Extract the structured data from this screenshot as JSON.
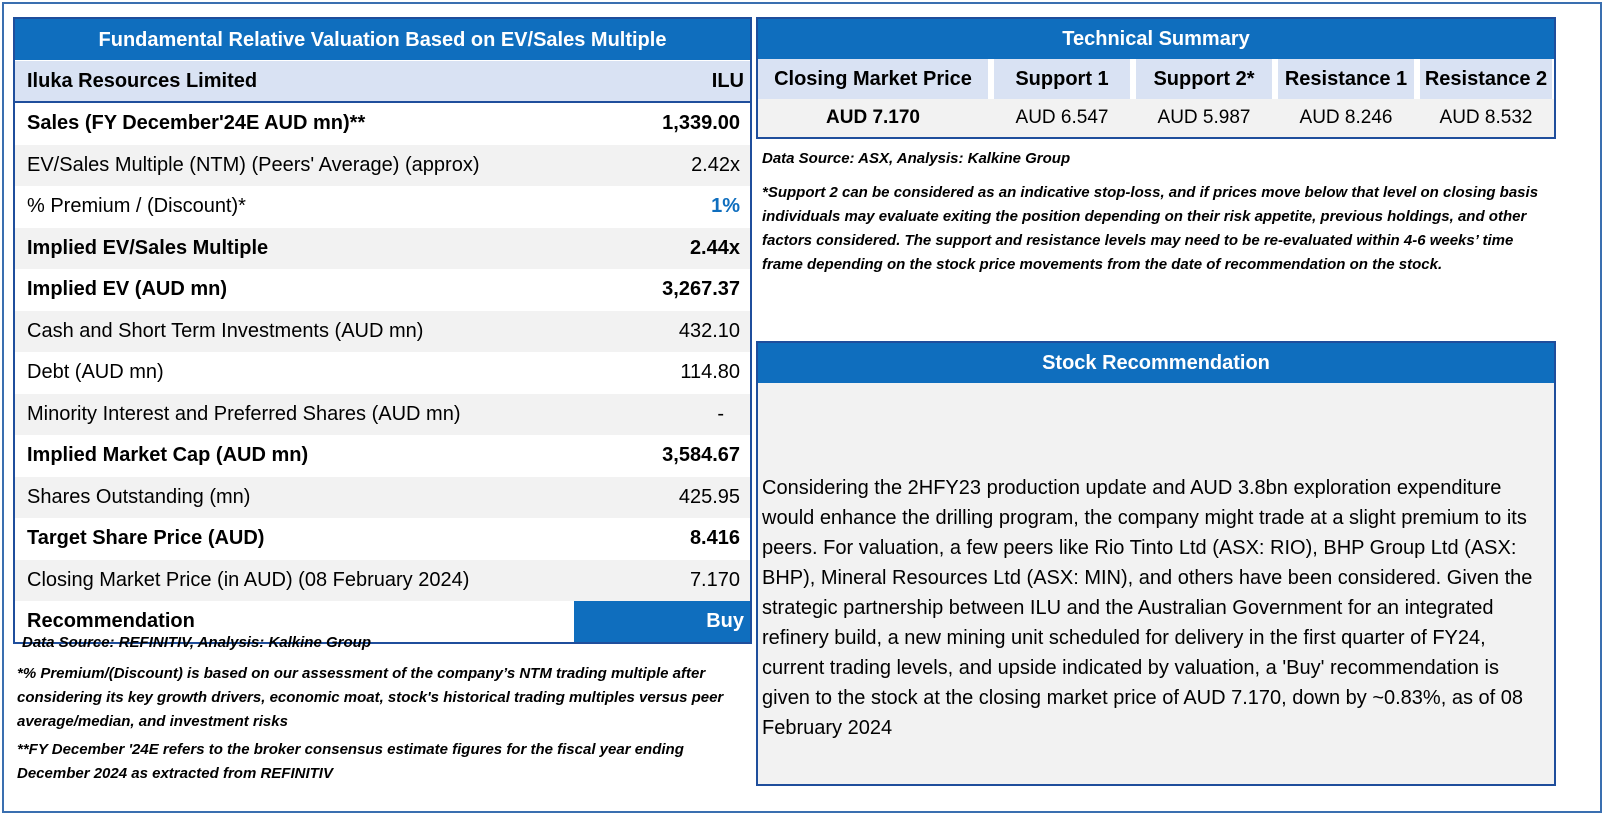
{
  "valuation": {
    "title": "Fundamental Relative Valuation Based on EV/Sales Multiple",
    "company": "Iluka Resources Limited",
    "ticker": "ILU",
    "rows": [
      {
        "label": "Sales (FY December'24E AUD mn)**",
        "value": "1,339.00"
      },
      {
        "label": "EV/Sales Multiple (NTM)  (Peers' Average) (approx)",
        "value": "2.42x"
      },
      {
        "label": "% Premium / (Discount)*",
        "value": "1%"
      },
      {
        "label": "Implied EV/Sales Multiple",
        "value": "2.44x"
      },
      {
        "label": "Implied EV (AUD mn)",
        "value": "3,267.37"
      },
      {
        "label": "Cash and Short Term Investments (AUD mn)",
        "value": "432.10"
      },
      {
        "label": "Debt (AUD mn)",
        "value": "114.80"
      },
      {
        "label": "Minority Interest and Preferred Shares (AUD mn)",
        "value": "-"
      },
      {
        "label": "Implied Market Cap (AUD mn)",
        "value": "3,584.67"
      },
      {
        "label": "Shares Outstanding (mn)",
        "value": "425.95"
      },
      {
        "label": "Target Share Price (AUD)",
        "value": "8.416"
      },
      {
        "label": "Closing Market Price (in AUD) (08 February 2024)",
        "value": "7.170"
      }
    ],
    "recommendation_label": "Recommendation",
    "recommendation_value": "Buy",
    "source": "Data Source: REFINITIV, Analysis: Kalkine Group",
    "note1": "*% Premium/(Discount) is based on our assessment of the company’s NTM trading multiple after considering its key growth drivers, economic moat, stock's historical trading multiples versus peer average/median, and investment risks",
    "note2": "**FY December '24E refers to the broker consensus estimate figures for the fiscal year ending December 2024  as extracted from REFINITIV"
  },
  "technical": {
    "title": "Technical Summary",
    "headers": [
      "Closing Market Price",
      "Support 1",
      "Support 2*",
      "Resistance 1",
      "Resistance 2"
    ],
    "values": [
      "AUD 7.170",
      "AUD 6.547",
      "AUD 5.987",
      "AUD 8.246",
      "AUD 8.532"
    ],
    "source": "Data Source: ASX, Analysis: Kalkine Group",
    "note": "*Support 2 can be considered as an indicative stop-loss, and if prices move below that level on closing basis individuals may evaluate exiting the position depending on their risk appetite, previous holdings, and other factors considered. The support and resistance levels may need to be re-evaluated within 4-6 weeks’ time frame depending on the stock price movements from the date of recommendation on the stock."
  },
  "stock_rec": {
    "title": "Stock Recommendation",
    "text": "Considering the 2HFY23 production update and AUD 3.8bn exploration expenditure would enhance the drilling program, the company might trade at a slight premium to its peers. For valuation, a few peers like Rio Tinto Ltd (ASX: RIO), BHP Group Ltd (ASX: BHP), Mineral Resources Ltd (ASX: MIN), and others have been considered. Given the strategic partnership between ILU and the Australian Government for an integrated refinery build, a new mining unit scheduled for delivery in the first quarter of FY24, current trading levels, and upside indicated by valuation, a 'Buy' recommendation is given to the stock at the closing market price of AUD 7.170, down by ~0.83%, as of 08 February 2024"
  },
  "colors": {
    "header_blue": "#0f6ebe",
    "border_blue": "#1f4e9c",
    "light_blue": "#d9e2f3",
    "row_gray": "#f2f2f2"
  }
}
